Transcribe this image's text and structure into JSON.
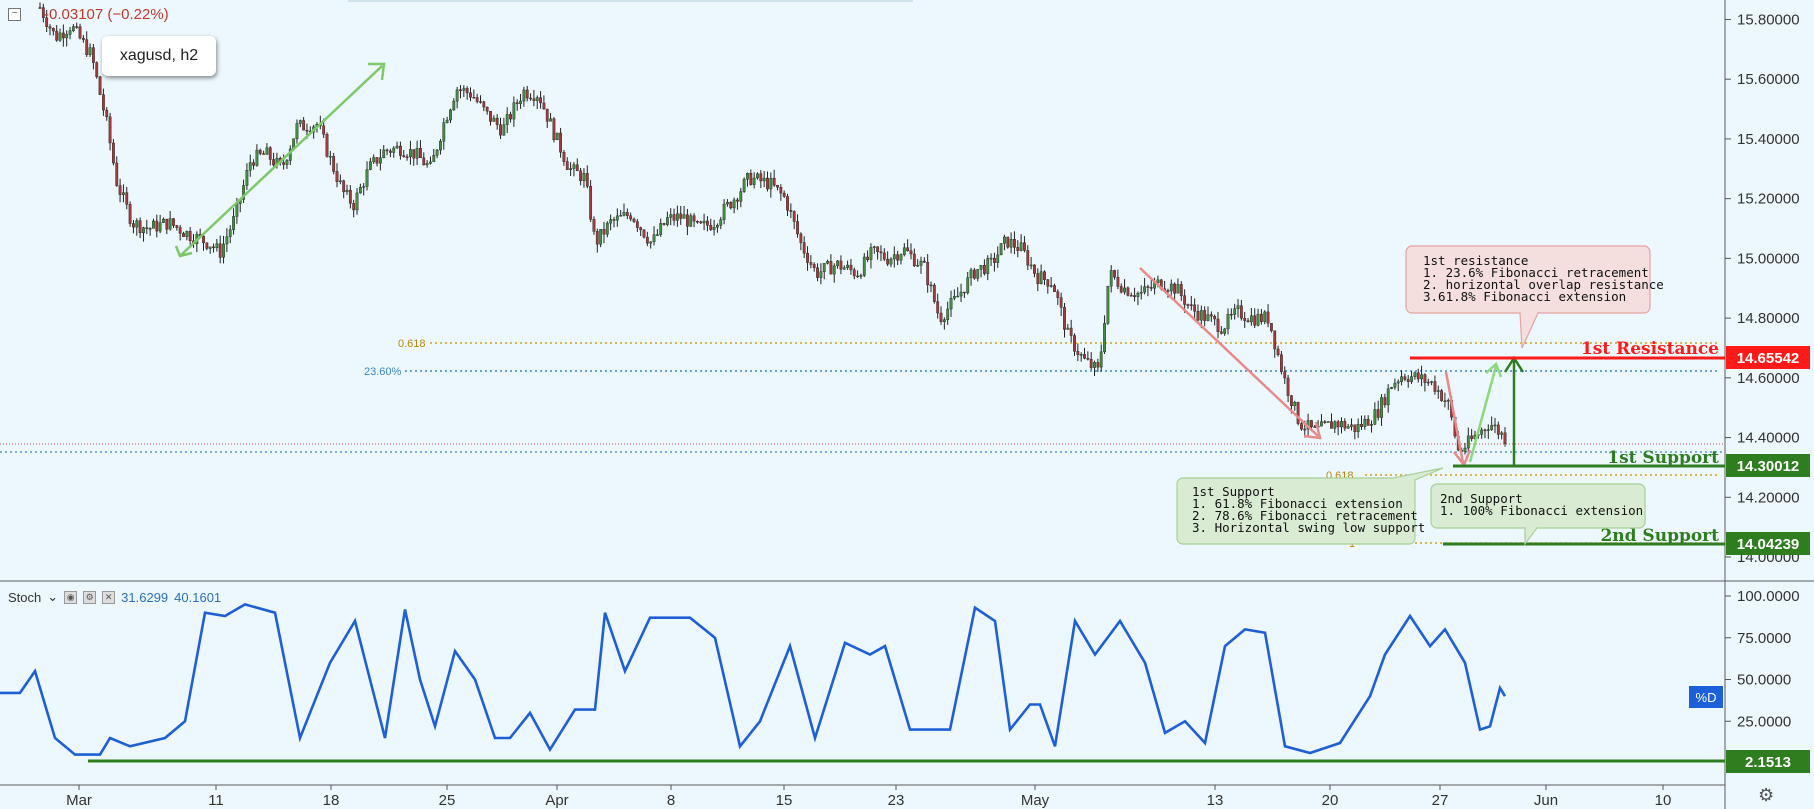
{
  "header": {
    "change_text": "-0.03107 (−0.22%)",
    "collapse_symbol": "−"
  },
  "symbol": {
    "label": "xagusd, h2"
  },
  "price_axis": {
    "ticks": [
      "15.80000",
      "15.60000",
      "15.40000",
      "15.20000",
      "15.00000",
      "14.80000",
      "14.60000",
      "14.40000",
      "14.20000",
      "14.00000"
    ],
    "tick_values": [
      15.8,
      15.6,
      15.4,
      15.2,
      15.0,
      14.8,
      14.6,
      14.4,
      14.2,
      14.0
    ],
    "range": [
      13.99,
      15.825
    ]
  },
  "osc_axis": {
    "ticks": [
      "100.0000",
      "75.0000",
      "50.0000",
      "25.0000"
    ],
    "tick_values": [
      100,
      75,
      50,
      25
    ],
    "range": [
      0,
      100
    ]
  },
  "time_axis": {
    "labels": [
      "Mar",
      "11",
      "18",
      "25",
      "Apr",
      "8",
      "15",
      "23",
      "May",
      "13",
      "20",
      "27",
      "Jun",
      "10"
    ]
  },
  "levels": {
    "resistance": {
      "label": "1st Resistance",
      "value_text": "14.65542",
      "value": 14.65542,
      "color": "#ff1a1a"
    },
    "support1": {
      "label": "1st Support",
      "value_text": "14.30012",
      "value": 14.30012,
      "color": "#2e7d1e"
    },
    "support2": {
      "label": "2nd Support",
      "value_text": "14.04239",
      "value": 14.04239,
      "color": "#2e7d1e"
    },
    "stoch_level": {
      "value_text": "2.1513",
      "value": 2.1513
    }
  },
  "fib_labels": {
    "upper_618": "0.618",
    "upper_236": "23.60%",
    "lower_618": "0.618",
    "lower_1": "1"
  },
  "notes": {
    "resistance": [
      "1st resistance",
      "1. 23.6% Fibonacci retracement",
      "2. horizontal overlap resistance",
      "3.61.8% Fibonacci extension"
    ],
    "support1": [
      "1st Support",
      "1. 61.8% Fibonacci extension",
      "2. 78.6% Fibonacci retracement",
      "3. Horizontal swing low support"
    ],
    "support2": [
      "2nd Support",
      "1. 100% Fibonacci extension"
    ]
  },
  "stoch": {
    "name": "Stoch",
    "value1": "31.6299",
    "value2": "40.1601",
    "d_label": "%D"
  },
  "colors": {
    "up": "#3f8f3f",
    "down": "#a33a3a",
    "stoch_line": "#1f5fd6",
    "bg": "#ecf8fd",
    "blue_badge": "#1b5fd9"
  },
  "chart_data": {
    "type": "candlestick",
    "path_points": [
      [
        0,
        15.84
      ],
      [
        0.6,
        15.74
      ],
      [
        1.2,
        15.78
      ],
      [
        2.0,
        15.68
      ],
      [
        2.6,
        15.45
      ],
      [
        3.0,
        15.25
      ],
      [
        3.6,
        15.12
      ],
      [
        4.2,
        15.1
      ],
      [
        5.0,
        15.12
      ],
      [
        5.8,
        15.08
      ],
      [
        6.6,
        15.05
      ],
      [
        7.0,
        15.02
      ],
      [
        7.6,
        15.14
      ],
      [
        8.2,
        15.33
      ],
      [
        8.8,
        15.35
      ],
      [
        9.4,
        15.3
      ],
      [
        10.0,
        15.44
      ],
      [
        10.8,
        15.45
      ],
      [
        11.3,
        15.33
      ],
      [
        11.8,
        15.22
      ],
      [
        12.2,
        15.18
      ],
      [
        12.8,
        15.3
      ],
      [
        13.4,
        15.36
      ],
      [
        14.0,
        15.37
      ],
      [
        14.6,
        15.35
      ],
      [
        15.2,
        15.3
      ],
      [
        15.7,
        15.45
      ],
      [
        16.2,
        15.57
      ],
      [
        16.8,
        15.55
      ],
      [
        17.4,
        15.48
      ],
      [
        18.0,
        15.43
      ],
      [
        18.8,
        15.56
      ],
      [
        19.4,
        15.55
      ],
      [
        20.0,
        15.42
      ],
      [
        20.6,
        15.3
      ],
      [
        21.2,
        15.27
      ],
      [
        21.6,
        15.05
      ],
      [
        22.2,
        15.12
      ],
      [
        23.0,
        15.15
      ],
      [
        23.8,
        15.05
      ],
      [
        24.4,
        15.13
      ],
      [
        25.0,
        15.14
      ],
      [
        25.6,
        15.1
      ],
      [
        26.2,
        15.12
      ],
      [
        27.0,
        15.2
      ],
      [
        27.6,
        15.27
      ],
      [
        28.4,
        15.25
      ],
      [
        29.0,
        15.2
      ],
      [
        29.6,
        15.05
      ],
      [
        30.2,
        14.95
      ],
      [
        31.0,
        14.98
      ],
      [
        31.8,
        14.95
      ],
      [
        32.4,
        15.02
      ],
      [
        33.0,
        15.0
      ],
      [
        33.6,
        15.03
      ],
      [
        34.4,
        14.97
      ],
      [
        35.0,
        14.8
      ],
      [
        35.6,
        14.86
      ],
      [
        36.4,
        14.96
      ],
      [
        37.0,
        14.98
      ],
      [
        37.6,
        15.06
      ],
      [
        38.2,
        15.03
      ],
      [
        38.8,
        14.94
      ],
      [
        39.4,
        14.92
      ],
      [
        40.0,
        14.74
      ],
      [
        40.6,
        14.66
      ],
      [
        41.2,
        14.62
      ],
      [
        41.6,
        14.95
      ],
      [
        42.2,
        14.9
      ],
      [
        42.8,
        14.88
      ],
      [
        43.6,
        14.92
      ],
      [
        44.2,
        14.9
      ],
      [
        44.8,
        14.83
      ],
      [
        45.4,
        14.8
      ],
      [
        46.0,
        14.77
      ],
      [
        46.6,
        14.82
      ],
      [
        47.2,
        14.8
      ],
      [
        47.8,
        14.8
      ],
      [
        48.4,
        14.6
      ],
      [
        49.0,
        14.45
      ],
      [
        49.6,
        14.42
      ],
      [
        50.4,
        14.45
      ],
      [
        51.2,
        14.43
      ],
      [
        52.0,
        14.48
      ],
      [
        52.6,
        14.58
      ],
      [
        53.0,
        14.61
      ],
      [
        53.6,
        14.6
      ],
      [
        54.2,
        14.58
      ],
      [
        54.8,
        14.51
      ],
      [
        55.2,
        14.35
      ],
      [
        55.8,
        14.4
      ],
      [
        56.4,
        14.45
      ],
      [
        57.0,
        14.4
      ]
    ]
  }
}
